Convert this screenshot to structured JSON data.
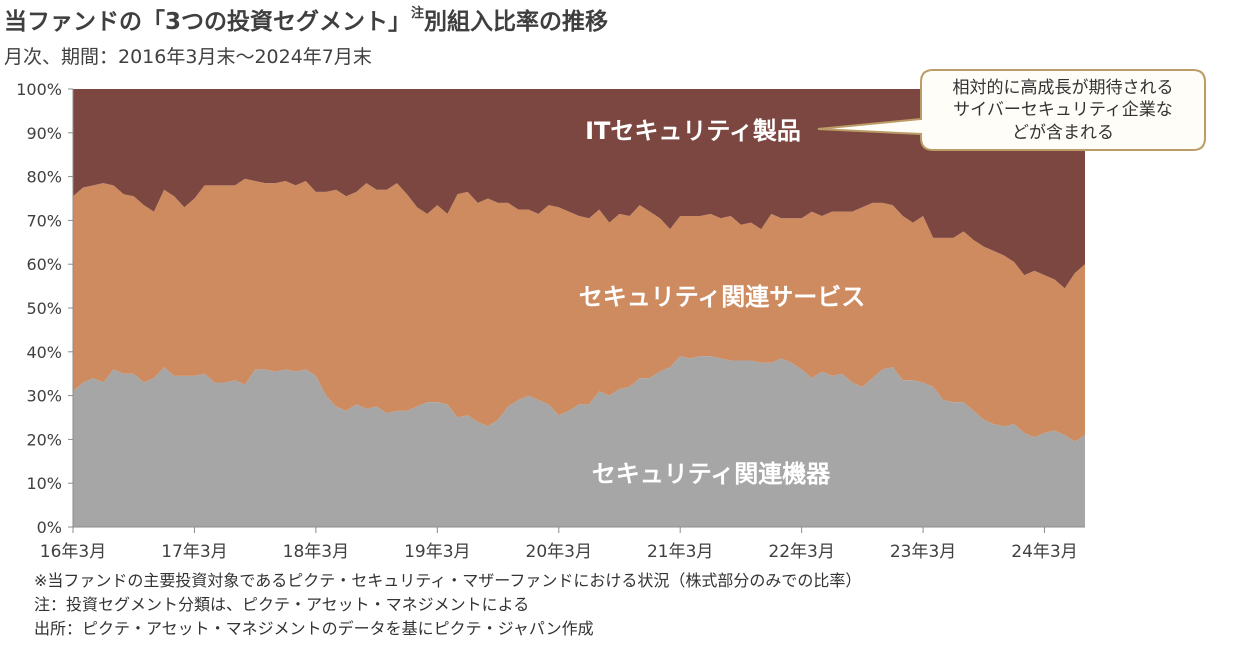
{
  "chart_data": {
    "type": "area",
    "stacked": "percent",
    "title": {
      "text": "当ファンドの「3つの投資セグメント」",
      "note_mark": "注",
      "text_after": "別組入比率の推移"
    },
    "subtitle": "月次、期間：2016年3月末～2024年7月末",
    "x": [
      "16年3月",
      "16年4月",
      "16年5月",
      "16年6月",
      "16年7月",
      "16年8月",
      "16年9月",
      "16年10月",
      "16年11月",
      "16年12月",
      "17年1月",
      "17年2月",
      "17年3月",
      "17年4月",
      "17年5月",
      "17年6月",
      "17年7月",
      "17年8月",
      "17年9月",
      "17年10月",
      "17年11月",
      "17年12月",
      "18年1月",
      "18年2月",
      "18年3月",
      "18年4月",
      "18年5月",
      "18年6月",
      "18年7月",
      "18年8月",
      "18年9月",
      "18年10月",
      "18年11月",
      "18年12月",
      "19年1月",
      "19年2月",
      "19年3月",
      "19年4月",
      "19年5月",
      "19年6月",
      "19年7月",
      "19年8月",
      "19年9月",
      "19年10月",
      "19年11月",
      "19年12月",
      "20年1月",
      "20年2月",
      "20年3月",
      "20年4月",
      "20年5月",
      "20年6月",
      "20年7月",
      "20年8月",
      "20年9月",
      "20年10月",
      "20年11月",
      "20年12月",
      "21年1月",
      "21年2月",
      "21年3月",
      "21年4月",
      "21年5月",
      "21年6月",
      "21年7月",
      "21年8月",
      "21年9月",
      "21年10月",
      "21年11月",
      "21年12月",
      "22年1月",
      "22年2月",
      "22年3月",
      "22年4月",
      "22年5月",
      "22年6月",
      "22年7月",
      "22年8月",
      "22年9月",
      "22年10月",
      "22年11月",
      "22年12月",
      "23年1月",
      "23年2月",
      "23年3月",
      "23年4月",
      "23年5月",
      "23年6月",
      "23年7月",
      "23年8月",
      "23年9月",
      "23年10月",
      "23年11月",
      "23年12月",
      "24年1月",
      "24年2月",
      "24年3月",
      "24年4月",
      "24年5月",
      "24年6月",
      "24年7月"
    ],
    "x_tick_labels": [
      "16年3月",
      "17年3月",
      "18年3月",
      "19年3月",
      "20年3月",
      "21年3月",
      "22年3月",
      "23年3月",
      "24年3月"
    ],
    "ylim": [
      0,
      100
    ],
    "y_ticks": [
      {
        "value": 0,
        "label": "0%"
      },
      {
        "value": 10,
        "label": "10%"
      },
      {
        "value": 20,
        "label": "20%"
      },
      {
        "value": 30,
        "label": "30%"
      },
      {
        "value": 40,
        "label": "40%"
      },
      {
        "value": 50,
        "label": "50%"
      },
      {
        "value": 60,
        "label": "60%"
      },
      {
        "value": 70,
        "label": "70%"
      },
      {
        "value": 80,
        "label": "80%"
      },
      {
        "value": 90,
        "label": "90%"
      },
      {
        "value": 100,
        "label": "100%"
      }
    ],
    "grid": false,
    "legend_placement": "inside-areas",
    "series": [
      {
        "name": "セキュリティ関連機器",
        "color": "#a6a6a6",
        "values": [
          31,
          33,
          34,
          33,
          36,
          35,
          35,
          33,
          34,
          36.5,
          34.5,
          34.5,
          34.5,
          35,
          33,
          33,
          33.5,
          32.5,
          36,
          36,
          35.5,
          36,
          35.5,
          36,
          34.5,
          30,
          27.5,
          26.5,
          28,
          27,
          27.5,
          26,
          26.5,
          26.5,
          27.5,
          28.5,
          28.5,
          28,
          25,
          25.5,
          24,
          23,
          24.5,
          27.5,
          29,
          30,
          29,
          28,
          25.5,
          26.5,
          28,
          28,
          31,
          30,
          31.5,
          32,
          34,
          34,
          35.5,
          36.5,
          39,
          38.5,
          39,
          39,
          38.5,
          38,
          38,
          38,
          37.5,
          37.5,
          38.5,
          37.5,
          36,
          34,
          35.5,
          34.5,
          35,
          33,
          32,
          34,
          36,
          36.5,
          33.5,
          33.5,
          33,
          32,
          29,
          28.5,
          28.5,
          26.5,
          24.5,
          23.5,
          23,
          23.5,
          21.5,
          20.5,
          21.5,
          22,
          21,
          19.5,
          21
        ]
      },
      {
        "name": "セキュリティ関連サービス",
        "color": "#ce8b60",
        "values": [
          44.5,
          44.5,
          44,
          45.5,
          42,
          41,
          40.5,
          40.5,
          38,
          40.5,
          41,
          38.5,
          40.5,
          43,
          45,
          45,
          44.5,
          47,
          43,
          42.5,
          43,
          43,
          42.5,
          43,
          42,
          46.5,
          49.5,
          49,
          48.5,
          51.5,
          49.5,
          51,
          52,
          49.5,
          45.5,
          43,
          45,
          43.5,
          51,
          51,
          50,
          52,
          49.5,
          46.5,
          43.5,
          42.5,
          42.5,
          45.5,
          47.5,
          45.5,
          43,
          42.5,
          41.5,
          39.5,
          40,
          39,
          39.5,
          38,
          35,
          31.5,
          32,
          32.5,
          32,
          32.5,
          32,
          33,
          31,
          31.5,
          30.5,
          34,
          32,
          33,
          34.5,
          38,
          35.5,
          37.5,
          37,
          39,
          41,
          40,
          38,
          37,
          37.5,
          36,
          38,
          34,
          37,
          37.5,
          39,
          39,
          39.5,
          39.5,
          39,
          37,
          36,
          38,
          36,
          34.5,
          33.5,
          38.5,
          39
        ]
      },
      {
        "name": "ITセキュリティ製品",
        "color": "#7c4741",
        "values": [
          24.5,
          22.5,
          22,
          21.5,
          22,
          24,
          24.5,
          26.5,
          28,
          23,
          24.5,
          27,
          25,
          22,
          22,
          22,
          22,
          20.5,
          21,
          21.5,
          21.5,
          21,
          22,
          21,
          23.5,
          23.5,
          23,
          24.5,
          23.5,
          21.5,
          23,
          23,
          21.5,
          24,
          27,
          28.5,
          26.5,
          28.5,
          24,
          23.5,
          26,
          25,
          26,
          26,
          27.5,
          27.5,
          28.5,
          26.5,
          27,
          28,
          29,
          29.5,
          27.5,
          30.5,
          28.5,
          29,
          26.5,
          28,
          29.5,
          32,
          29,
          29,
          29,
          28.5,
          29.5,
          29,
          31,
          30.5,
          32,
          28.5,
          29.5,
          29.5,
          29.5,
          28,
          29,
          28,
          28,
          28,
          27,
          26,
          26,
          26.5,
          29,
          30.5,
          29,
          34,
          34,
          34,
          32.5,
          34.5,
          36,
          37,
          38,
          39.5,
          42.5,
          41.5,
          42.5,
          43.5,
          45.5,
          42,
          40
        ]
      }
    ],
    "annotation": [
      "相対的に高成長が期待される",
      "サイバーセキュリティ企業な",
      "どが含まれる"
    ]
  },
  "footnotes": [
    "※当ファンドの主要投資対象であるピクテ・セキュリティ・マザーファンドにおける状況（株式部分のみでの比率）",
    "注：投資セグメント分類は、ピクテ・アセット・マネジメントによる",
    "出所：ピクテ・アセット・マネジメントのデータを基にピクテ・ジャパン作成"
  ]
}
